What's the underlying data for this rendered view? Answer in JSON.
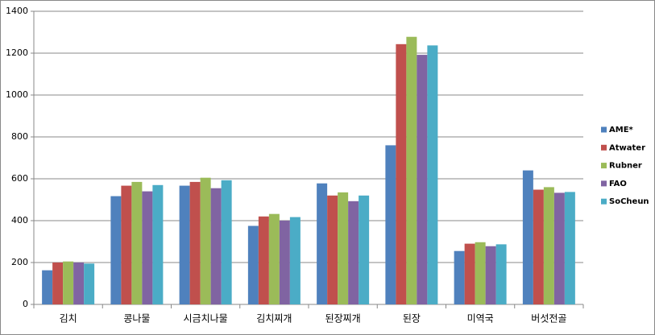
{
  "chart_data": {
    "type": "bar",
    "categories": [
      "김치",
      "콩나물",
      "시금치나물",
      "김치찌개",
      "된장찌개",
      "된장",
      "미역국",
      "버섯전골"
    ],
    "series": [
      {
        "name": "AME*",
        "color": "#4f81bd",
        "values": [
          163,
          517,
          567,
          375,
          578,
          760,
          255,
          640
        ]
      },
      {
        "name": "Atwater",
        "color": "#c0504d",
        "values": [
          200,
          567,
          585,
          420,
          520,
          1243,
          290,
          548
        ]
      },
      {
        "name": "Rubner",
        "color": "#9bbb59",
        "values": [
          205,
          585,
          605,
          432,
          535,
          1278,
          297,
          560
        ]
      },
      {
        "name": "FAO",
        "color": "#8064a2",
        "values": [
          200,
          540,
          555,
          400,
          493,
          1192,
          278,
          533
        ]
      },
      {
        "name": "SoCheun",
        "color": "#4bacc6",
        "values": [
          195,
          570,
          593,
          417,
          520,
          1237,
          287,
          537
        ]
      }
    ],
    "ylim": [
      0,
      1400
    ],
    "yticks": [
      0,
      200,
      400,
      600,
      800,
      1000,
      1200,
      1400
    ],
    "grid": true,
    "legend": "right"
  }
}
